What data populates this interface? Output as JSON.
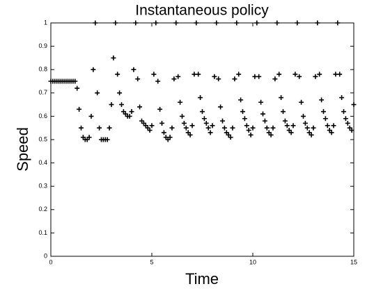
{
  "chart_data": {
    "type": "scatter",
    "title": "Instantaneous policy",
    "x_label": "Time",
    "y_label": "Speed",
    "marker": "+",
    "color": "#000000",
    "x": [
      0,
      0.1,
      0.2,
      0.3,
      0.4,
      0.5,
      0.6,
      0.7,
      0.8,
      0.9,
      1,
      1.1,
      1.2,
      1.3,
      1.4,
      1.5,
      1.6,
      1.7,
      1.8,
      1.9,
      2,
      2.1,
      2.2,
      2.3,
      2.4,
      2.5,
      2.6,
      2.7,
      2.8,
      2.9,
      3,
      3.1,
      3.2,
      3.3,
      3.4,
      3.5,
      3.6,
      3.7,
      3.8,
      3.9,
      4,
      4.1,
      4.2,
      4.3,
      4.4,
      4.5,
      4.6,
      4.7,
      4.8,
      4.9,
      5,
      5.1,
      5.2,
      5.3,
      5.4,
      5.5,
      5.6,
      5.7,
      5.8,
      5.9,
      6,
      6.1,
      6.2,
      6.3,
      6.4,
      6.5,
      6.6,
      6.7,
      6.8,
      6.9,
      7,
      7.1,
      7.2,
      7.3,
      7.4,
      7.5,
      7.6,
      7.7,
      7.8,
      7.9,
      8,
      8.1,
      8.2,
      8.3,
      8.4,
      8.5,
      8.6,
      8.7,
      8.8,
      8.9,
      9,
      9.1,
      9.2,
      9.3,
      9.4,
      9.5,
      9.6,
      9.7,
      9.8,
      9.9,
      10,
      10.1,
      10.2,
      10.3,
      10.4,
      10.5,
      10.6,
      10.7,
      10.8,
      10.9,
      11,
      11.1,
      11.2,
      11.3,
      11.4,
      11.5,
      11.6,
      11.7,
      11.8,
      11.9,
      12,
      12.1,
      12.2,
      12.3,
      12.4,
      12.5,
      12.6,
      12.7,
      12.8,
      12.9,
      13,
      13.1,
      13.2,
      13.3,
      13.4,
      13.5,
      13.6,
      13.7,
      13.8,
      13.9,
      14,
      14.1,
      14.2,
      14.3,
      14.4,
      14.5,
      14.6,
      14.7,
      14.8,
      14.9,
      15
    ],
    "values": [
      0.75,
      0.75,
      0.75,
      0.75,
      0.75,
      0.75,
      0.75,
      0.75,
      0.75,
      0.75,
      0.75,
      0.75,
      0.75,
      0.72,
      0.63,
      0.55,
      0.51,
      0.5,
      0.5,
      0.51,
      0.6,
      0.8,
      1,
      0.7,
      0.55,
      0.5,
      0.5,
      0.5,
      0.5,
      0.55,
      0.65,
      0.85,
      1,
      0.78,
      0.7,
      0.65,
      0.62,
      0.61,
      0.6,
      0.6,
      0.62,
      0.8,
      1,
      0.76,
      0.64,
      0.58,
      0.57,
      0.56,
      0.55,
      0.54,
      0.56,
      0.78,
      1,
      0.75,
      0.63,
      0.57,
      0.53,
      0.51,
      0.5,
      0.51,
      0.55,
      0.76,
      1,
      0.77,
      0.66,
      0.6,
      0.57,
      0.55,
      0.53,
      0.52,
      0.56,
      0.78,
      1,
      0.78,
      0.68,
      0.62,
      0.59,
      0.57,
      0.55,
      0.53,
      0.56,
      0.77,
      1,
      0.76,
      0.64,
      0.58,
      0.55,
      0.53,
      0.52,
      0.51,
      0.55,
      0.76,
      1,
      0.78,
      0.67,
      0.62,
      0.59,
      0.56,
      0.54,
      0.52,
      0.55,
      0.77,
      1,
      0.77,
      0.66,
      0.61,
      0.58,
      0.55,
      0.53,
      0.52,
      0.55,
      0.76,
      1,
      0.78,
      0.68,
      0.62,
      0.58,
      0.56,
      0.54,
      0.53,
      0.56,
      0.78,
      1,
      0.77,
      0.66,
      0.6,
      0.57,
      0.55,
      0.53,
      0.52,
      0.55,
      0.77,
      1,
      0.78,
      0.67,
      0.62,
      0.59,
      0.56,
      0.54,
      0.53,
      0.56,
      0.78,
      1,
      0.78,
      0.68,
      0.62,
      0.59,
      0.57,
      0.55,
      0.54,
      0.65
    ],
    "xlim": [
      0,
      15
    ],
    "ylim": [
      0,
      1
    ],
    "xticks": [
      0,
      5,
      10,
      15
    ],
    "yticks": [
      0,
      0.1,
      0.2,
      0.3,
      0.4,
      0.5,
      0.6,
      0.7,
      0.8,
      0.9,
      1
    ]
  }
}
